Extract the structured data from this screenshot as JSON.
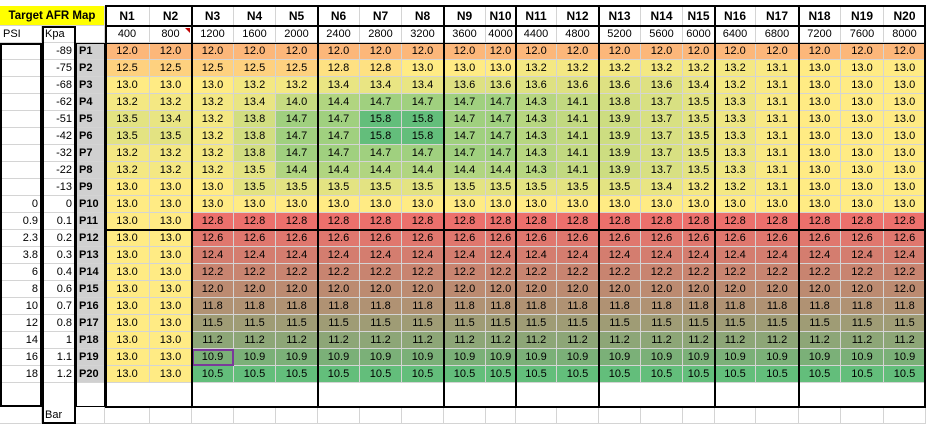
{
  "sheet": {
    "title": "Target AFR Map",
    "psi_label": "PSI",
    "kpa_label": "Kpa",
    "bar_label": "Bar",
    "selected_cell": {
      "row": "P19",
      "col": "N3",
      "value": "10.9"
    },
    "columns": [
      {
        "label": "N1",
        "rpm": "400"
      },
      {
        "label": "N2",
        "rpm": "800"
      },
      {
        "label": "N3",
        "rpm": "1200"
      },
      {
        "label": "N4",
        "rpm": "1600"
      },
      {
        "label": "N5",
        "rpm": "2000"
      },
      {
        "label": "N6",
        "rpm": "2400"
      },
      {
        "label": "N7",
        "rpm": "2800"
      },
      {
        "label": "N8",
        "rpm": "3200"
      },
      {
        "label": "N9",
        "rpm": "3600"
      },
      {
        "label": "N10",
        "rpm": "4000"
      },
      {
        "label": "N11",
        "rpm": "4400"
      },
      {
        "label": "N12",
        "rpm": "4800"
      },
      {
        "label": "N13",
        "rpm": "5200"
      },
      {
        "label": "N14",
        "rpm": "5600"
      },
      {
        "label": "N15",
        "rpm": "6000"
      },
      {
        "label": "N16",
        "rpm": "6400"
      },
      {
        "label": "N17",
        "rpm": "6800"
      },
      {
        "label": "N18",
        "rpm": "7200"
      },
      {
        "label": "N19",
        "rpm": "7600"
      },
      {
        "label": "N20",
        "rpm": "8000"
      }
    ],
    "rows": [
      {
        "label": "P1",
        "psi": "",
        "kpa": "-89",
        "values": [
          "12.0",
          "12.0",
          "12.0",
          "12.0",
          "12.0",
          "12.0",
          "12.0",
          "12.0",
          "12.0",
          "12.0",
          "12.0",
          "12.0",
          "12.0",
          "12.0",
          "12.0",
          "12.0",
          "12.0",
          "12.0",
          "12.0",
          "12.0"
        ]
      },
      {
        "label": "P2",
        "psi": "",
        "kpa": "-75",
        "values": [
          "12.5",
          "12.5",
          "12.5",
          "12.5",
          "12.5",
          "12.8",
          "12.8",
          "13.0",
          "13.0",
          "13.0",
          "13.2",
          "13.2",
          "13.2",
          "13.2",
          "13.2",
          "13.2",
          "13.1",
          "13.0",
          "13.0",
          "13.0"
        ]
      },
      {
        "label": "P3",
        "psi": "",
        "kpa": "-68",
        "values": [
          "13.0",
          "13.0",
          "13.0",
          "13.2",
          "13.2",
          "13.4",
          "13.4",
          "13.4",
          "13.6",
          "13.6",
          "13.6",
          "13.6",
          "13.6",
          "13.6",
          "13.4",
          "13.2",
          "13.1",
          "13.0",
          "13.0",
          "13.0"
        ]
      },
      {
        "label": "P4",
        "psi": "",
        "kpa": "-62",
        "values": [
          "13.2",
          "13.2",
          "13.2",
          "13.4",
          "14.0",
          "14.4",
          "14.7",
          "14.7",
          "14.7",
          "14.7",
          "14.3",
          "14.1",
          "13.8",
          "13.7",
          "13.5",
          "13.3",
          "13.1",
          "13.0",
          "13.0",
          "13.0"
        ]
      },
      {
        "label": "P5",
        "psi": "",
        "kpa": "-51",
        "values": [
          "13.5",
          "13.4",
          "13.2",
          "13.8",
          "14.7",
          "14.7",
          "15.8",
          "15.8",
          "14.7",
          "14.7",
          "14.3",
          "14.1",
          "13.9",
          "13.7",
          "13.5",
          "13.3",
          "13.1",
          "13.0",
          "13.0",
          "13.0"
        ]
      },
      {
        "label": "P6",
        "psi": "",
        "kpa": "-42",
        "values": [
          "13.5",
          "13.5",
          "13.2",
          "13.8",
          "14.7",
          "14.7",
          "15.8",
          "15.8",
          "14.7",
          "14.7",
          "14.3",
          "14.1",
          "13.9",
          "13.7",
          "13.5",
          "13.3",
          "13.1",
          "13.0",
          "13.0",
          "13.0"
        ]
      },
      {
        "label": "P7",
        "psi": "",
        "kpa": "-32",
        "values": [
          "13.2",
          "13.2",
          "13.2",
          "13.8",
          "14.7",
          "14.7",
          "14.7",
          "14.7",
          "14.7",
          "14.7",
          "14.3",
          "14.1",
          "13.9",
          "13.7",
          "13.5",
          "13.3",
          "13.1",
          "13.0",
          "13.0",
          "13.0"
        ]
      },
      {
        "label": "P8",
        "psi": "",
        "kpa": "-22",
        "values": [
          "13.2",
          "13.2",
          "13.2",
          "13.5",
          "14.4",
          "14.4",
          "14.4",
          "14.4",
          "14.4",
          "14.4",
          "14.3",
          "14.1",
          "13.9",
          "13.7",
          "13.5",
          "13.3",
          "13.1",
          "13.0",
          "13.0",
          "13.0"
        ]
      },
      {
        "label": "P9",
        "psi": "",
        "kpa": "-13",
        "values": [
          "13.0",
          "13.0",
          "13.0",
          "13.5",
          "13.5",
          "13.5",
          "13.5",
          "13.5",
          "13.5",
          "13.5",
          "13.5",
          "13.5",
          "13.5",
          "13.4",
          "13.2",
          "13.2",
          "13.1",
          "13.0",
          "13.0",
          "13.0"
        ]
      },
      {
        "label": "P10",
        "psi": "0",
        "kpa": "0",
        "values": [
          "13.0",
          "13.0",
          "13.0",
          "13.0",
          "13.0",
          "13.0",
          "13.0",
          "13.0",
          "13.0",
          "13.0",
          "13.0",
          "13.0",
          "13.0",
          "13.0",
          "13.0",
          "13.0",
          "13.0",
          "13.0",
          "13.0",
          "13.0"
        ]
      },
      {
        "label": "P11",
        "psi": "0.9",
        "kpa": "0.1",
        "values": [
          "13.0",
          "13.0",
          "12.8",
          "12.8",
          "12.8",
          "12.8",
          "12.8",
          "12.8",
          "12.8",
          "12.8",
          "12.8",
          "12.8",
          "12.8",
          "12.8",
          "12.8",
          "12.8",
          "12.8",
          "12.8",
          "12.8",
          "12.8"
        ]
      },
      {
        "label": "P12",
        "psi": "2.3",
        "kpa": "0.2",
        "values": [
          "13.0",
          "13.0",
          "12.6",
          "12.6",
          "12.6",
          "12.6",
          "12.6",
          "12.6",
          "12.6",
          "12.6",
          "12.6",
          "12.6",
          "12.6",
          "12.6",
          "12.6",
          "12.6",
          "12.6",
          "12.6",
          "12.6",
          "12.6"
        ]
      },
      {
        "label": "P13",
        "psi": "3.8",
        "kpa": "0.3",
        "values": [
          "13.0",
          "13.0",
          "12.4",
          "12.4",
          "12.4",
          "12.4",
          "12.4",
          "12.4",
          "12.4",
          "12.4",
          "12.4",
          "12.4",
          "12.4",
          "12.4",
          "12.4",
          "12.4",
          "12.4",
          "12.4",
          "12.4",
          "12.4"
        ]
      },
      {
        "label": "P14",
        "psi": "6",
        "kpa": "0.4",
        "values": [
          "13.0",
          "13.0",
          "12.2",
          "12.2",
          "12.2",
          "12.2",
          "12.2",
          "12.2",
          "12.2",
          "12.2",
          "12.2",
          "12.2",
          "12.2",
          "12.2",
          "12.2",
          "12.2",
          "12.2",
          "12.2",
          "12.2",
          "12.2"
        ]
      },
      {
        "label": "P15",
        "psi": "8",
        "kpa": "0.6",
        "values": [
          "13.0",
          "13.0",
          "12.0",
          "12.0",
          "12.0",
          "12.0",
          "12.0",
          "12.0",
          "12.0",
          "12.0",
          "12.0",
          "12.0",
          "12.0",
          "12.0",
          "12.0",
          "12.0",
          "12.0",
          "12.0",
          "12.0",
          "12.0"
        ]
      },
      {
        "label": "P16",
        "psi": "10",
        "kpa": "0.7",
        "values": [
          "13.0",
          "13.0",
          "11.8",
          "11.8",
          "11.8",
          "11.8",
          "11.8",
          "11.8",
          "11.8",
          "11.8",
          "11.8",
          "11.8",
          "11.8",
          "11.8",
          "11.8",
          "11.8",
          "11.8",
          "11.8",
          "11.8",
          "11.8"
        ]
      },
      {
        "label": "P17",
        "psi": "12",
        "kpa": "0.8",
        "values": [
          "13.0",
          "13.0",
          "11.5",
          "11.5",
          "11.5",
          "11.5",
          "11.5",
          "11.5",
          "11.5",
          "11.5",
          "11.5",
          "11.5",
          "11.5",
          "11.5",
          "11.5",
          "11.5",
          "11.5",
          "11.5",
          "11.5",
          "11.5"
        ]
      },
      {
        "label": "P18",
        "psi": "14",
        "kpa": "1",
        "values": [
          "13.0",
          "13.0",
          "11.2",
          "11.2",
          "11.2",
          "11.2",
          "11.2",
          "11.2",
          "11.2",
          "11.2",
          "11.2",
          "11.2",
          "11.2",
          "11.2",
          "11.2",
          "11.2",
          "11.2",
          "11.2",
          "11.2",
          "11.2"
        ]
      },
      {
        "label": "P19",
        "psi": "16",
        "kpa": "1.1",
        "values": [
          "13.0",
          "13.0",
          "10.9",
          "10.9",
          "10.9",
          "10.9",
          "10.9",
          "10.9",
          "10.9",
          "10.9",
          "10.9",
          "10.9",
          "10.9",
          "10.9",
          "10.9",
          "10.9",
          "10.9",
          "10.9",
          "10.9",
          "10.9"
        ]
      },
      {
        "label": "P20",
        "psi": "18",
        "kpa": "1.2",
        "values": [
          "13.0",
          "13.0",
          "10.5",
          "10.5",
          "10.5",
          "10.5",
          "10.5",
          "10.5",
          "10.5",
          "10.5",
          "10.5",
          "10.5",
          "10.5",
          "10.5",
          "10.5",
          "10.5",
          "10.5",
          "10.5",
          "10.5",
          "10.5"
        ]
      }
    ]
  },
  "colors": {
    "title_fill": "#ffff00",
    "row_label_fill": "#d0d0d0",
    "selection_border": "#7a3a9a",
    "scale_low": "#f8696b",
    "scale_mid": "#ffeb84",
    "scale_high": "#63be7b"
  }
}
